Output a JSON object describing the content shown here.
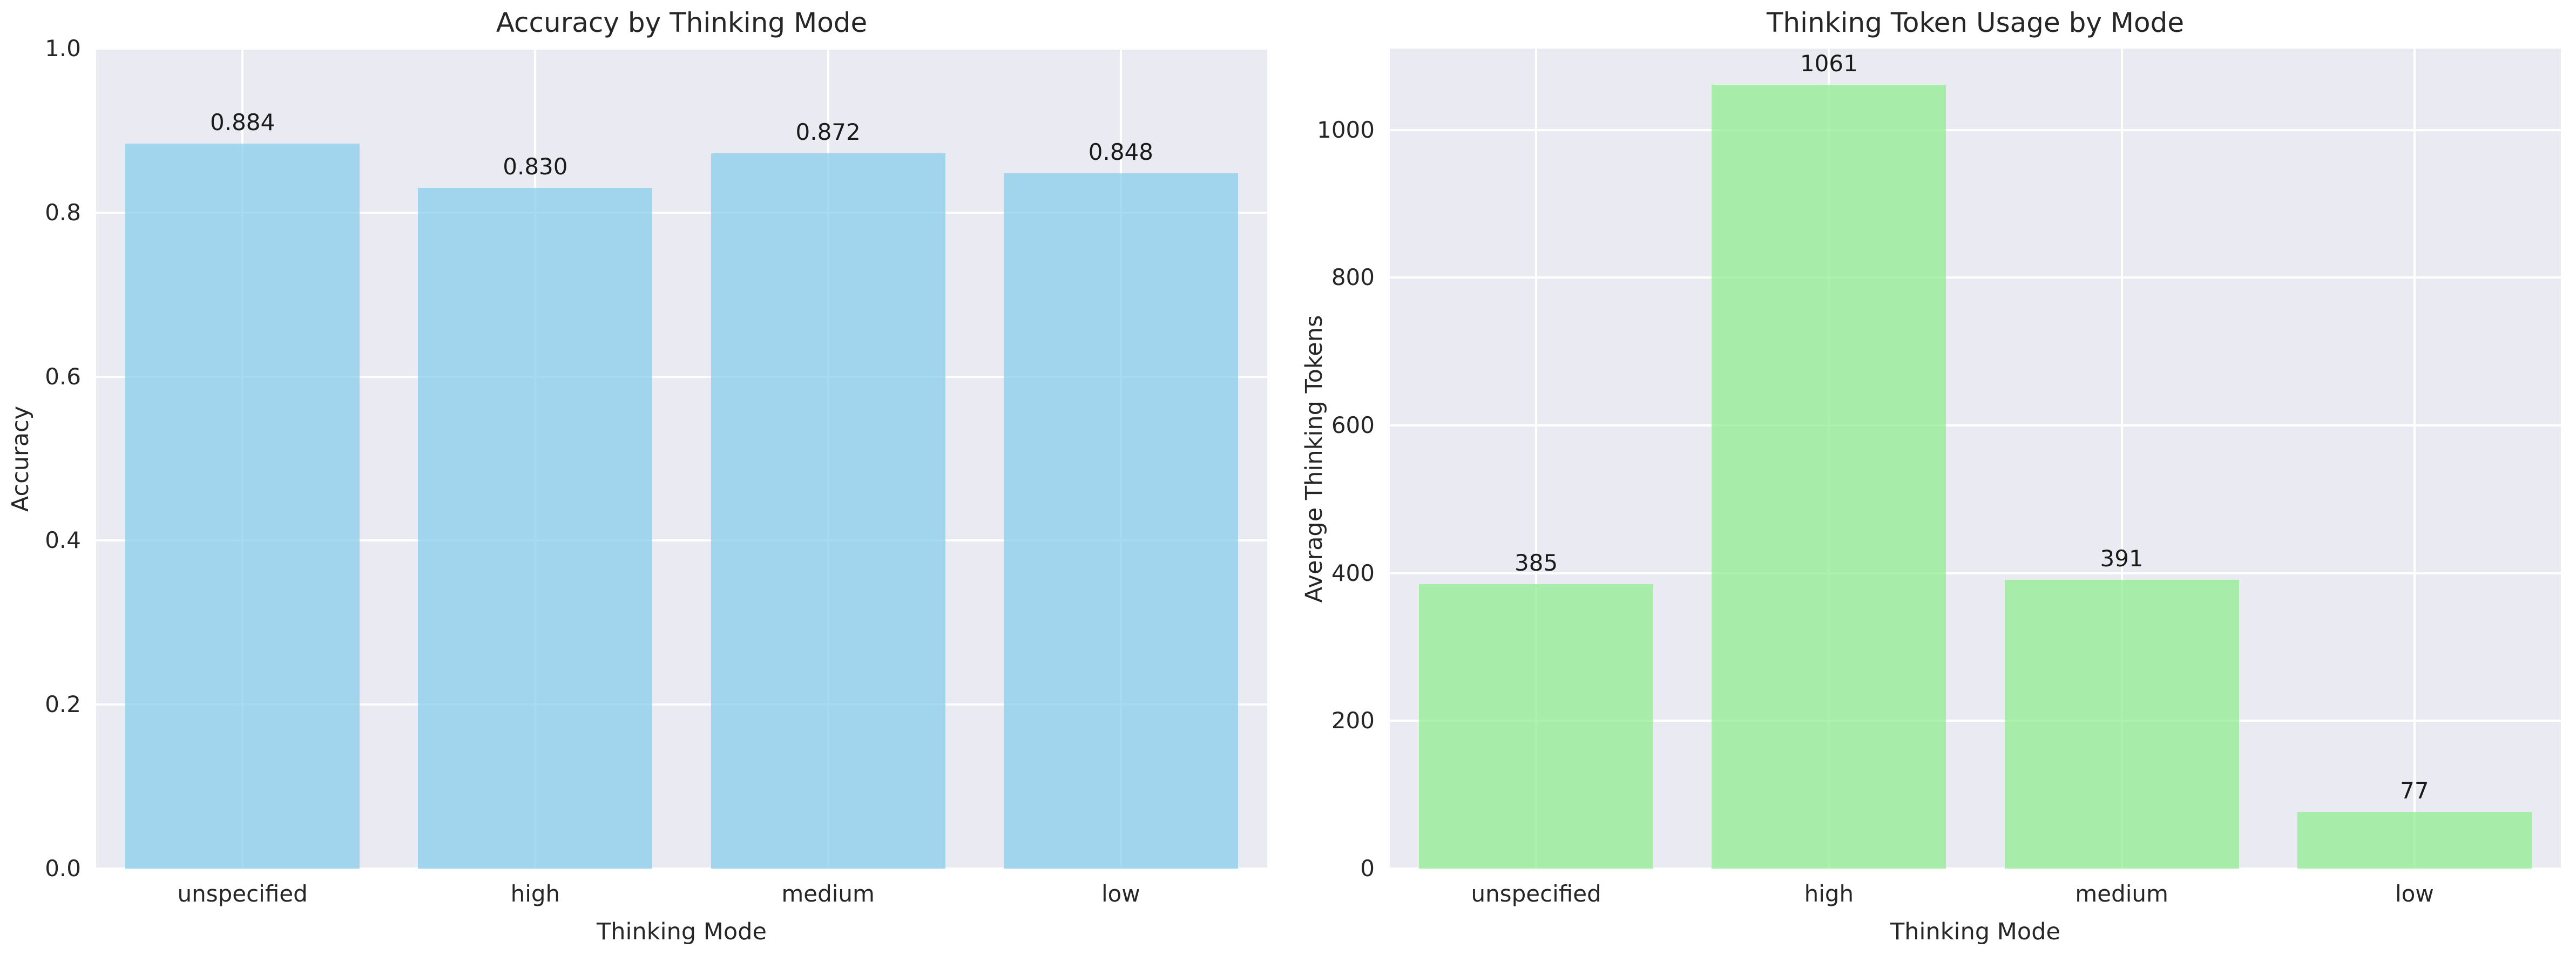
{
  "figure": {
    "background": "#ffffff",
    "axes_background": "#EAEAF2",
    "grid_color": "#ffffff",
    "text_color": "#262626"
  },
  "chart_data": [
    {
      "type": "bar",
      "title": "Accuracy by Thinking Mode",
      "xlabel": "Thinking Mode",
      "ylabel": "Accuracy",
      "categories": [
        "unspecified",
        "high",
        "medium",
        "low"
      ],
      "values": [
        0.884,
        0.83,
        0.872,
        0.848
      ],
      "value_labels": [
        "0.884",
        "0.830",
        "0.872",
        "0.848"
      ],
      "bar_color": "rgba(135, 206, 235, 0.75)",
      "ylim": [
        0,
        1.0
      ],
      "yticks": [
        0.0,
        0.2,
        0.4,
        0.6,
        0.8,
        1.0
      ],
      "ytick_labels": [
        "0.0",
        "0.2",
        "0.4",
        "0.6",
        "0.8",
        "1.0"
      ],
      "grid": "on",
      "legend": "none",
      "bar_width_fraction": 0.8
    },
    {
      "type": "bar",
      "title": "Thinking Token Usage by Mode",
      "xlabel": "Thinking Mode",
      "ylabel": "Average Thinking Tokens",
      "categories": [
        "unspecified",
        "high",
        "medium",
        "low"
      ],
      "values": [
        385,
        1061,
        391,
        77
      ],
      "value_labels": [
        "385",
        "1061",
        "391",
        "77"
      ],
      "bar_color": "rgba(144, 238, 144, 0.75)",
      "ylim": [
        0,
        1110
      ],
      "yticks": [
        0,
        200,
        400,
        600,
        800,
        1000
      ],
      "ytick_labels": [
        "0",
        "200",
        "400",
        "600",
        "800",
        "1000"
      ],
      "grid": "on",
      "legend": "none",
      "bar_width_fraction": 0.8
    }
  ]
}
